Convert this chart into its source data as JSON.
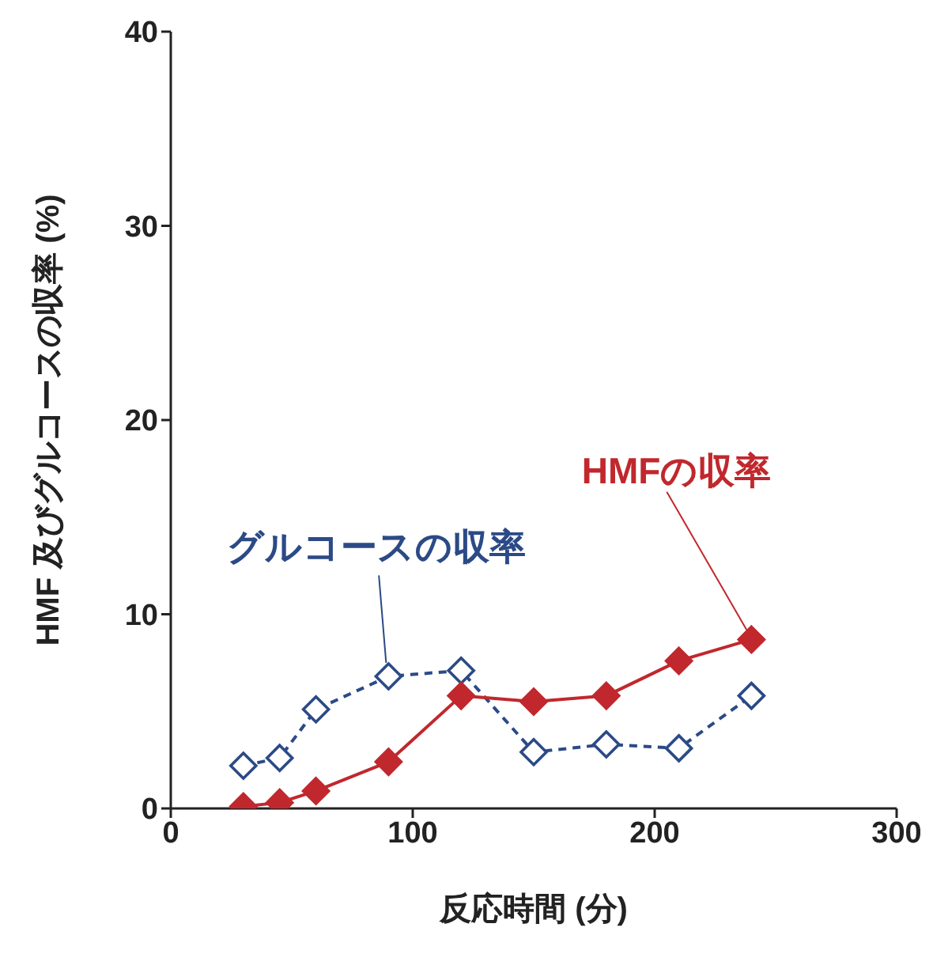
{
  "chart_data": {
    "type": "line",
    "xlabel": "反応時間 (分)",
    "ylabel": "HMF 及びグルコースの収率 (%)",
    "x": [
      30,
      45,
      60,
      90,
      120,
      150,
      180,
      210,
      240
    ],
    "series": [
      {
        "color": "#2b4a86",
        "line_style": "dashed",
        "marker": "diamond",
        "values": [
          2.2,
          2.6,
          5.1,
          6.8,
          7.1,
          2.9,
          3.3,
          3.1,
          5.8
        ]
      },
      {
        "color": "#c0282d",
        "line_style": "solid",
        "marker": "diamond",
        "values": [
          0.1,
          0.3,
          0.9,
          2.4,
          5.8,
          5.5,
          5.8,
          7.6,
          8.7
        ]
      }
    ],
    "annotations": [
      {
        "text": "グルコースの収率",
        "x": 90,
        "y": 6.8
      },
      {
        "text": "HMFの収率",
        "x": 240,
        "y": 8.7
      }
    ],
    "xlim": [
      0,
      300
    ],
    "xticks": [
      0,
      100,
      200,
      300
    ],
    "ylim": [
      0,
      40
    ],
    "yticks": [
      0,
      10,
      20,
      30,
      40
    ],
    "grid": false,
    "legend": false
  }
}
